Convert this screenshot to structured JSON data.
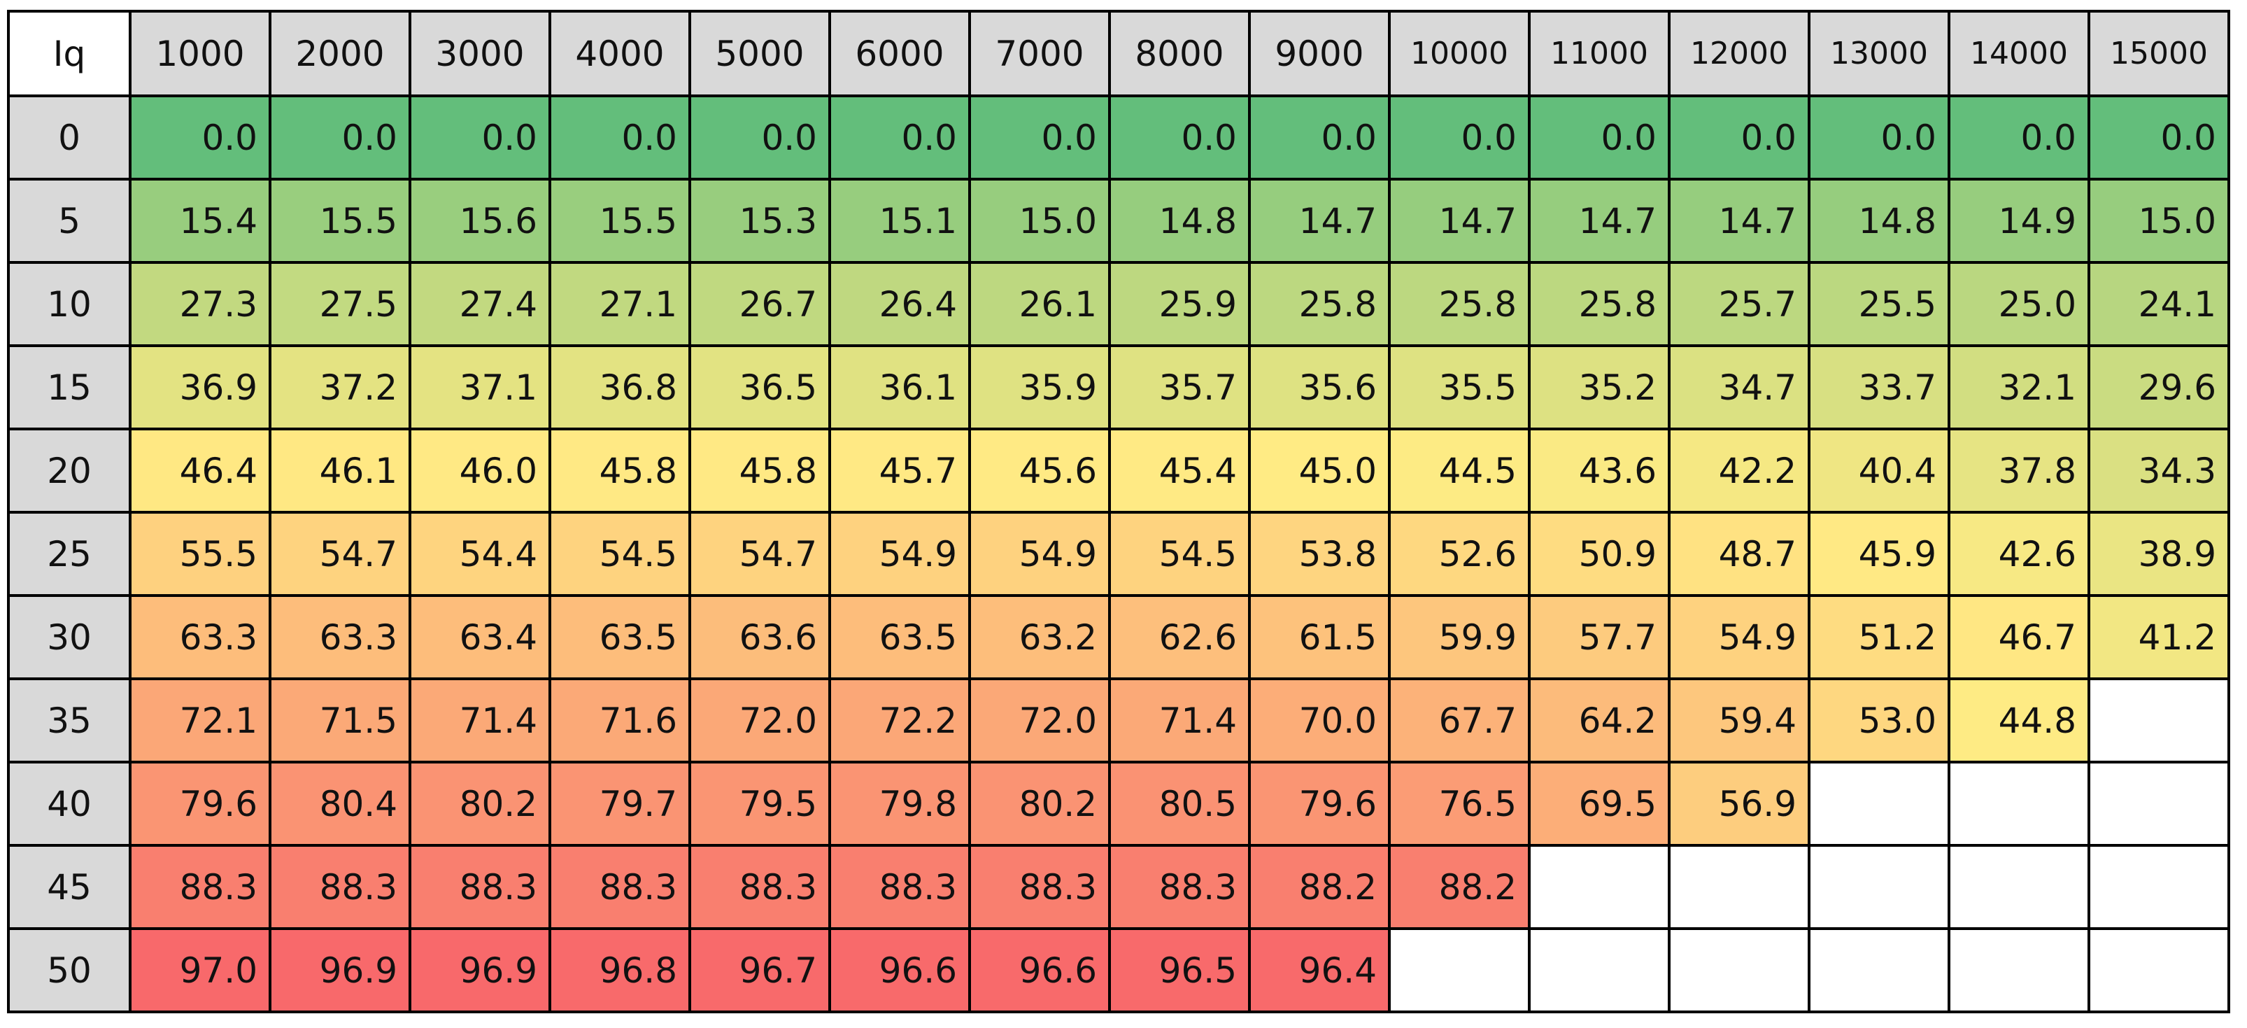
{
  "chart_data": {
    "type": "heatmap",
    "corner_label": "Iq",
    "columns": [
      "1000",
      "2000",
      "3000",
      "4000",
      "5000",
      "6000",
      "7000",
      "8000",
      "9000",
      "10000",
      "11000",
      "12000",
      "13000",
      "14000",
      "15000"
    ],
    "rows": [
      "0",
      "5",
      "10",
      "15",
      "20",
      "25",
      "30",
      "35",
      "40",
      "45",
      "50"
    ],
    "values": [
      [
        "0.0",
        "0.0",
        "0.0",
        "0.0",
        "0.0",
        "0.0",
        "0.0",
        "0.0",
        "0.0",
        "0.0",
        "0.0",
        "0.0",
        "0.0",
        "0.0",
        "0.0"
      ],
      [
        "15.4",
        "15.5",
        "15.6",
        "15.5",
        "15.3",
        "15.1",
        "15.0",
        "14.8",
        "14.7",
        "14.7",
        "14.7",
        "14.7",
        "14.8",
        "14.9",
        "15.0"
      ],
      [
        "27.3",
        "27.5",
        "27.4",
        "27.1",
        "26.7",
        "26.4",
        "26.1",
        "25.9",
        "25.8",
        "25.8",
        "25.8",
        "25.7",
        "25.5",
        "25.0",
        "24.1"
      ],
      [
        "36.9",
        "37.2",
        "37.1",
        "36.8",
        "36.5",
        "36.1",
        "35.9",
        "35.7",
        "35.6",
        "35.5",
        "35.2",
        "34.7",
        "33.7",
        "32.1",
        "29.6"
      ],
      [
        "46.4",
        "46.1",
        "46.0",
        "45.8",
        "45.8",
        "45.7",
        "45.6",
        "45.4",
        "45.0",
        "44.5",
        "43.6",
        "42.2",
        "40.4",
        "37.8",
        "34.3"
      ],
      [
        "55.5",
        "54.7",
        "54.4",
        "54.5",
        "54.7",
        "54.9",
        "54.9",
        "54.5",
        "53.8",
        "52.6",
        "50.9",
        "48.7",
        "45.9",
        "42.6",
        "38.9"
      ],
      [
        "63.3",
        "63.3",
        "63.4",
        "63.5",
        "63.6",
        "63.5",
        "63.2",
        "62.6",
        "61.5",
        "59.9",
        "57.7",
        "54.9",
        "51.2",
        "46.7",
        "41.2"
      ],
      [
        "72.1",
        "71.5",
        "71.4",
        "71.6",
        "72.0",
        "72.2",
        "72.0",
        "71.4",
        "70.0",
        "67.7",
        "64.2",
        "59.4",
        "53.0",
        "44.8",
        null
      ],
      [
        "79.6",
        "80.4",
        "80.2",
        "79.7",
        "79.5",
        "79.8",
        "80.2",
        "80.5",
        "79.6",
        "76.5",
        "69.5",
        "56.9",
        null,
        null,
        null
      ],
      [
        "88.3",
        "88.3",
        "88.3",
        "88.3",
        "88.3",
        "88.3",
        "88.3",
        "88.3",
        "88.2",
        "88.2",
        null,
        null,
        null,
        null,
        null
      ],
      [
        "97.0",
        "96.9",
        "96.9",
        "96.8",
        "96.7",
        "96.6",
        "96.6",
        "96.5",
        "96.4",
        null,
        null,
        null,
        null,
        null,
        null
      ]
    ],
    "color_scale": {
      "min_color": "#63be7b",
      "mid_color": "#ffeb84",
      "max_color": "#f8696b",
      "mid_value": 45.0
    },
    "header_color": "#d9d9d9",
    "empty_color": "#ffffff",
    "grid": true
  }
}
